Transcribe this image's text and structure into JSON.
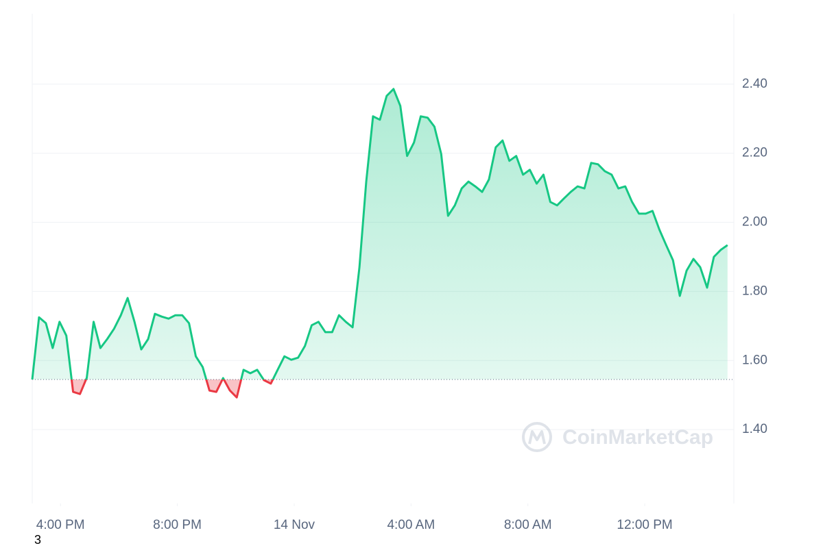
{
  "chart_data": {
    "type": "line",
    "watermark": "CoinMarketCap",
    "color": "#16c784",
    "down_color": "#ea3943",
    "x": [
      -58,
      -44,
      -30,
      -16,
      -2,
      12,
      26,
      40,
      54,
      68,
      82,
      96,
      110,
      124,
      138,
      152,
      166,
      180,
      194,
      208,
      222,
      236,
      250,
      264,
      278,
      292,
      306,
      320,
      334,
      348,
      362,
      376,
      390,
      404,
      418,
      432,
      446,
      460,
      474,
      488,
      502,
      516,
      530,
      544,
      558,
      572,
      586,
      600,
      614,
      628,
      642,
      656,
      670,
      684,
      698,
      712,
      726,
      740,
      754,
      768,
      782,
      796,
      810,
      824,
      838,
      852,
      866,
      880,
      894,
      908,
      922,
      936,
      950,
      964,
      978,
      992,
      1006,
      1020,
      1034,
      1048,
      1062,
      1076,
      1090,
      1104,
      1118,
      1132,
      1146,
      1160,
      1174,
      1188,
      1202,
      1216,
      1230,
      1244,
      1258,
      1272,
      1286,
      1300,
      1314,
      1328,
      1342,
      1356,
      1370
    ],
    "values": [
      1.545,
      1.725,
      1.708,
      1.636,
      1.712,
      1.672,
      1.509,
      1.503,
      1.55,
      1.712,
      1.636,
      1.662,
      1.692,
      1.731,
      1.781,
      1.712,
      1.632,
      1.662,
      1.735,
      1.727,
      1.721,
      1.731,
      1.731,
      1.708,
      1.612,
      1.581,
      1.513,
      1.509,
      1.549,
      1.513,
      1.493,
      1.573,
      1.563,
      1.573,
      1.543,
      1.533,
      1.573,
      1.612,
      1.602,
      1.608,
      1.642,
      1.702,
      1.712,
      1.682,
      1.682,
      1.731,
      1.712,
      1.696,
      1.87,
      2.118,
      2.307,
      2.297,
      2.366,
      2.386,
      2.337,
      2.192,
      2.231,
      2.307,
      2.303,
      2.277,
      2.198,
      2.019,
      2.049,
      2.098,
      2.118,
      2.104,
      2.088,
      2.124,
      2.217,
      2.237,
      2.178,
      2.192,
      2.138,
      2.152,
      2.112,
      2.138,
      2.059,
      2.049,
      2.069,
      2.088,
      2.104,
      2.098,
      2.172,
      2.168,
      2.148,
      2.138,
      2.098,
      2.104,
      2.059,
      2.025,
      2.025,
      2.033,
      1.979,
      1.934,
      1.89,
      1.787,
      1.86,
      1.894,
      1.87,
      1.811,
      1.9,
      1.92,
      1.934
    ],
    "xlim": [
      -58,
      1383
    ],
    "xticks": [
      {
        "value": 0,
        "label": "4:00 PM"
      },
      {
        "value": 240,
        "label": "8:00 PM"
      },
      {
        "value": 480,
        "label": "14 Nov"
      },
      {
        "value": 720,
        "label": "4:00 AM"
      },
      {
        "value": 960,
        "label": "8:00 AM"
      },
      {
        "value": 1200,
        "label": "12:00 PM"
      }
    ],
    "ylim": [
      1.186,
      2.604
    ],
    "yticks": [
      {
        "value": 1.4,
        "label": "1.40"
      },
      {
        "value": 1.6,
        "label": "1.60"
      },
      {
        "value": 1.8,
        "label": "1.80"
      },
      {
        "value": 2.0,
        "label": "2.00"
      },
      {
        "value": 2.2,
        "label": "2.20"
      },
      {
        "value": 2.4,
        "label": "2.40"
      }
    ],
    "grid": true
  },
  "page_label": "3"
}
